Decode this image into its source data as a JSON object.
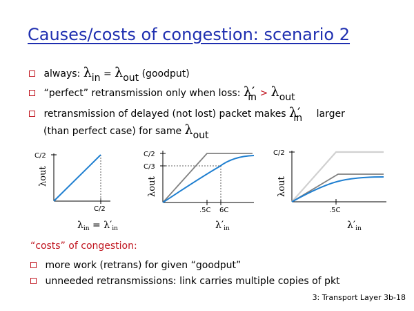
{
  "title": "Causes/costs of congestion: scenario 2",
  "bullets": [
    {
      "text_a": "always: ",
      "lambda": "λ",
      "sub_in": "in",
      "eq": " = ",
      "lambda2": "λ",
      "sub_out": "out",
      "tail": " (goodput)"
    },
    {
      "text_a": "“perfect” retransmission only when loss: ",
      "lambda": "λ",
      "prime": "′",
      "sub_in": "in",
      "gt": " > ",
      "lambda2": "λ",
      "sub_out": "out"
    },
    {
      "text_a": "retransmission of delayed (not lost) packet makes ",
      "lambda": "λ",
      "prime": "′",
      "sub_in": "in",
      "tail": " larger",
      "line2": "(than perfect case) for same ",
      "lambda2": "λ",
      "sub_out": "out"
    }
  ],
  "charts": {
    "c1": {
      "ytick": "C/2",
      "xtick": "C/2",
      "ylabel": "λout",
      "xlabel_l": "λ",
      "xlabel_sub": "in",
      "xlabel_eq": " = ",
      "xlabel_l2": "λ′",
      "xlabel_sub2": "in"
    },
    "c2": {
      "ytick1": "C/2",
      "ytick2": "C/3",
      "xtick1": ".5C",
      "xtick2": "6C",
      "ylabel": "λout",
      "xlabel": "λ′",
      "xlabel_sub": "in"
    },
    "c3": {
      "ytick": "C/2",
      "xtick": ".5C",
      "ylabel": "λout",
      "xlabel": "λ′",
      "xlabel_sub": "in"
    }
  },
  "costs": {
    "title": "“costs” of congestion:",
    "items": [
      "more work (retrans) for given “goodput”",
      "unneeded retransmissions: link carries multiple copies of pkt"
    ]
  },
  "footer": "3: Transport Layer  3b-18",
  "colors": {
    "title": "#1f2fb0",
    "bullet": "#c0141e",
    "curve": "#1f7fd0",
    "gray": "#808080",
    "lightgray": "#d0d0d0"
  }
}
